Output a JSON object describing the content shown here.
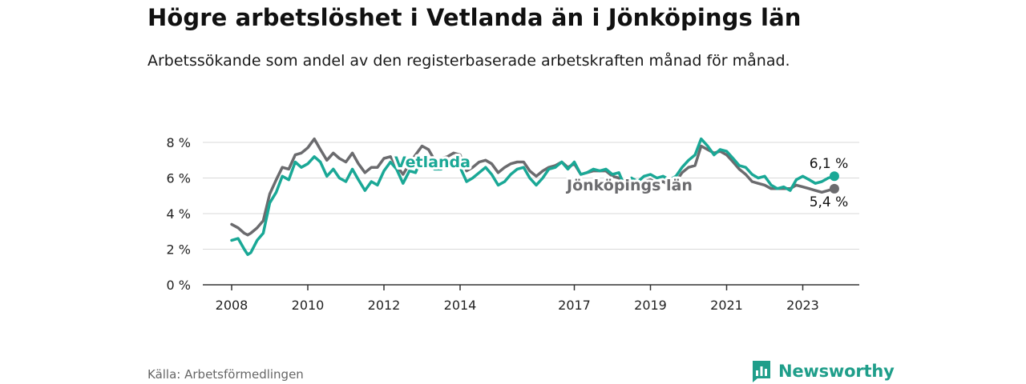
{
  "header": {
    "title": "Högre arbetslöshet i Vetlanda än i Jönköpings län",
    "subtitle": "Arbetssökande som andel av den registerbaserade arbetskraften månad för månad."
  },
  "footer": {
    "source": "Källa: Arbetsförmedlingen",
    "brand": "Newsworthy"
  },
  "colors": {
    "vetlanda": "#1aa896",
    "lan": "#6b6b6e",
    "grid": "#d9d9d9",
    "axis": "#333333"
  },
  "chart_data": {
    "type": "line",
    "title": "Högre arbetslöshet i Vetlanda än i Jönköpings län",
    "xlabel": "",
    "ylabel": "",
    "x_unit": "year",
    "xlim": [
      2007.5,
      2024.9
    ],
    "ylim": [
      0,
      8
    ],
    "grid": true,
    "y_ticks": [
      0,
      2,
      4,
      6,
      8
    ],
    "y_tick_labels": [
      "0 %",
      "2 %",
      "4 %",
      "6 %",
      "8 %"
    ],
    "x_ticks": [
      2008,
      2010,
      2012,
      2014,
      2017,
      2019,
      2021,
      2023
    ],
    "x_tick_labels": [
      "2008",
      "2010",
      "2012",
      "2014",
      "2017",
      "2019",
      "2021",
      "2023"
    ],
    "series": [
      {
        "name": "Vetlanda",
        "label": "Vetlanda",
        "end_label": "6,1 %",
        "x": [
          2008.0,
          2008.17,
          2008.33,
          2008.42,
          2008.5,
          2008.67,
          2008.83,
          2009.0,
          2009.17,
          2009.33,
          2009.5,
          2009.67,
          2009.83,
          2010.0,
          2010.17,
          2010.33,
          2010.5,
          2010.67,
          2010.83,
          2011.0,
          2011.17,
          2011.33,
          2011.5,
          2011.67,
          2011.83,
          2012.0,
          2012.17,
          2012.33,
          2012.5,
          2012.67,
          2012.83,
          2013.0,
          2013.17,
          2013.33,
          2013.5,
          2013.67,
          2013.83,
          2014.0,
          2014.17,
          2014.33,
          2014.5,
          2014.67,
          2014.83,
          2015.0,
          2015.17,
          2015.33,
          2015.5,
          2015.67,
          2015.83,
          2016.0,
          2016.17,
          2016.33,
          2016.5,
          2016.67,
          2016.83,
          2017.0,
          2017.17,
          2017.33,
          2017.5,
          2017.67,
          2017.83,
          2018.0,
          2018.17,
          2018.33,
          2018.5,
          2018.67,
          2018.83,
          2019.0,
          2019.17,
          2019.33,
          2019.5,
          2019.67,
          2019.83,
          2020.0,
          2020.17,
          2020.33,
          2020.5,
          2020.67,
          2020.83,
          2021.0,
          2021.17,
          2021.33,
          2021.5,
          2021.67,
          2021.83,
          2022.0,
          2022.17,
          2022.33,
          2022.5,
          2022.67,
          2022.83,
          2023.0,
          2023.17,
          2023.33,
          2023.5,
          2023.67,
          2023.83
        ],
        "values": [
          2.5,
          2.6,
          2.0,
          1.7,
          1.8,
          2.5,
          2.9,
          4.6,
          5.2,
          6.1,
          5.9,
          6.9,
          6.6,
          6.8,
          7.2,
          6.9,
          6.1,
          6.5,
          6.0,
          5.8,
          6.5,
          5.9,
          5.3,
          5.8,
          5.6,
          6.4,
          6.9,
          6.5,
          5.7,
          6.4,
          6.3,
          7.2,
          6.8,
          6.5,
          6.5,
          6.9,
          6.7,
          6.6,
          5.8,
          6.0,
          6.3,
          6.6,
          6.2,
          5.6,
          5.8,
          6.2,
          6.5,
          6.6,
          6.0,
          5.6,
          6.0,
          6.5,
          6.6,
          6.9,
          6.5,
          6.9,
          6.2,
          6.3,
          6.5,
          6.4,
          6.5,
          6.2,
          6.3,
          5.5,
          6.0,
          5.8,
          6.1,
          6.2,
          6.0,
          6.1,
          5.9,
          6.1,
          6.6,
          7.0,
          7.3,
          8.2,
          7.8,
          7.3,
          7.6,
          7.5,
          7.1,
          6.7,
          6.6,
          6.2,
          6.0,
          6.1,
          5.6,
          5.4,
          5.5,
          5.3,
          5.9,
          6.1,
          5.9,
          5.7,
          5.8,
          6.0,
          6.1
        ]
      },
      {
        "name": "Jönköpings län",
        "label": "Jönköpings län",
        "end_label": "5,4 %",
        "x": [
          2008.0,
          2008.17,
          2008.33,
          2008.42,
          2008.5,
          2008.67,
          2008.83,
          2009.0,
          2009.17,
          2009.33,
          2009.5,
          2009.67,
          2009.83,
          2010.0,
          2010.17,
          2010.33,
          2010.5,
          2010.67,
          2010.83,
          2011.0,
          2011.17,
          2011.33,
          2011.5,
          2011.67,
          2011.83,
          2012.0,
          2012.17,
          2012.33,
          2012.5,
          2012.67,
          2012.83,
          2013.0,
          2013.17,
          2013.33,
          2013.5,
          2013.67,
          2013.83,
          2014.0,
          2014.17,
          2014.33,
          2014.5,
          2014.67,
          2014.83,
          2015.0,
          2015.17,
          2015.33,
          2015.5,
          2015.67,
          2015.83,
          2016.0,
          2016.17,
          2016.33,
          2016.5,
          2016.67,
          2016.83,
          2017.0,
          2017.17,
          2017.33,
          2017.5,
          2017.67,
          2017.83,
          2018.0,
          2018.17,
          2018.33,
          2018.5,
          2018.67,
          2018.83,
          2019.0,
          2019.17,
          2019.33,
          2019.5,
          2019.67,
          2019.83,
          2020.0,
          2020.17,
          2020.33,
          2020.5,
          2020.67,
          2020.83,
          2021.0,
          2021.17,
          2021.33,
          2021.5,
          2021.67,
          2021.83,
          2022.0,
          2022.17,
          2022.33,
          2022.5,
          2022.67,
          2022.83,
          2023.0,
          2023.17,
          2023.33,
          2023.5,
          2023.67,
          2023.83
        ],
        "values": [
          3.4,
          3.2,
          2.9,
          2.8,
          2.9,
          3.2,
          3.6,
          5.1,
          5.9,
          6.6,
          6.5,
          7.3,
          7.4,
          7.7,
          8.2,
          7.6,
          7.0,
          7.4,
          7.1,
          6.9,
          7.4,
          6.8,
          6.3,
          6.6,
          6.6,
          7.1,
          7.2,
          6.7,
          6.2,
          6.8,
          7.3,
          7.8,
          7.6,
          7.0,
          7.1,
          7.2,
          7.4,
          7.3,
          6.4,
          6.6,
          6.9,
          7.0,
          6.8,
          6.3,
          6.6,
          6.8,
          6.9,
          6.9,
          6.4,
          6.1,
          6.4,
          6.6,
          6.7,
          6.9,
          6.6,
          6.8,
          6.2,
          6.3,
          6.4,
          6.4,
          6.4,
          6.1,
          6.0,
          5.7,
          5.9,
          5.6,
          5.8,
          5.9,
          5.7,
          5.8,
          5.6,
          5.8,
          6.3,
          6.6,
          6.7,
          7.8,
          7.6,
          7.4,
          7.5,
          7.3,
          6.9,
          6.5,
          6.2,
          5.8,
          5.7,
          5.6,
          5.4,
          5.4,
          5.4,
          5.4,
          5.6,
          5.5,
          5.4,
          5.3,
          5.2,
          5.3,
          5.4
        ]
      }
    ]
  }
}
